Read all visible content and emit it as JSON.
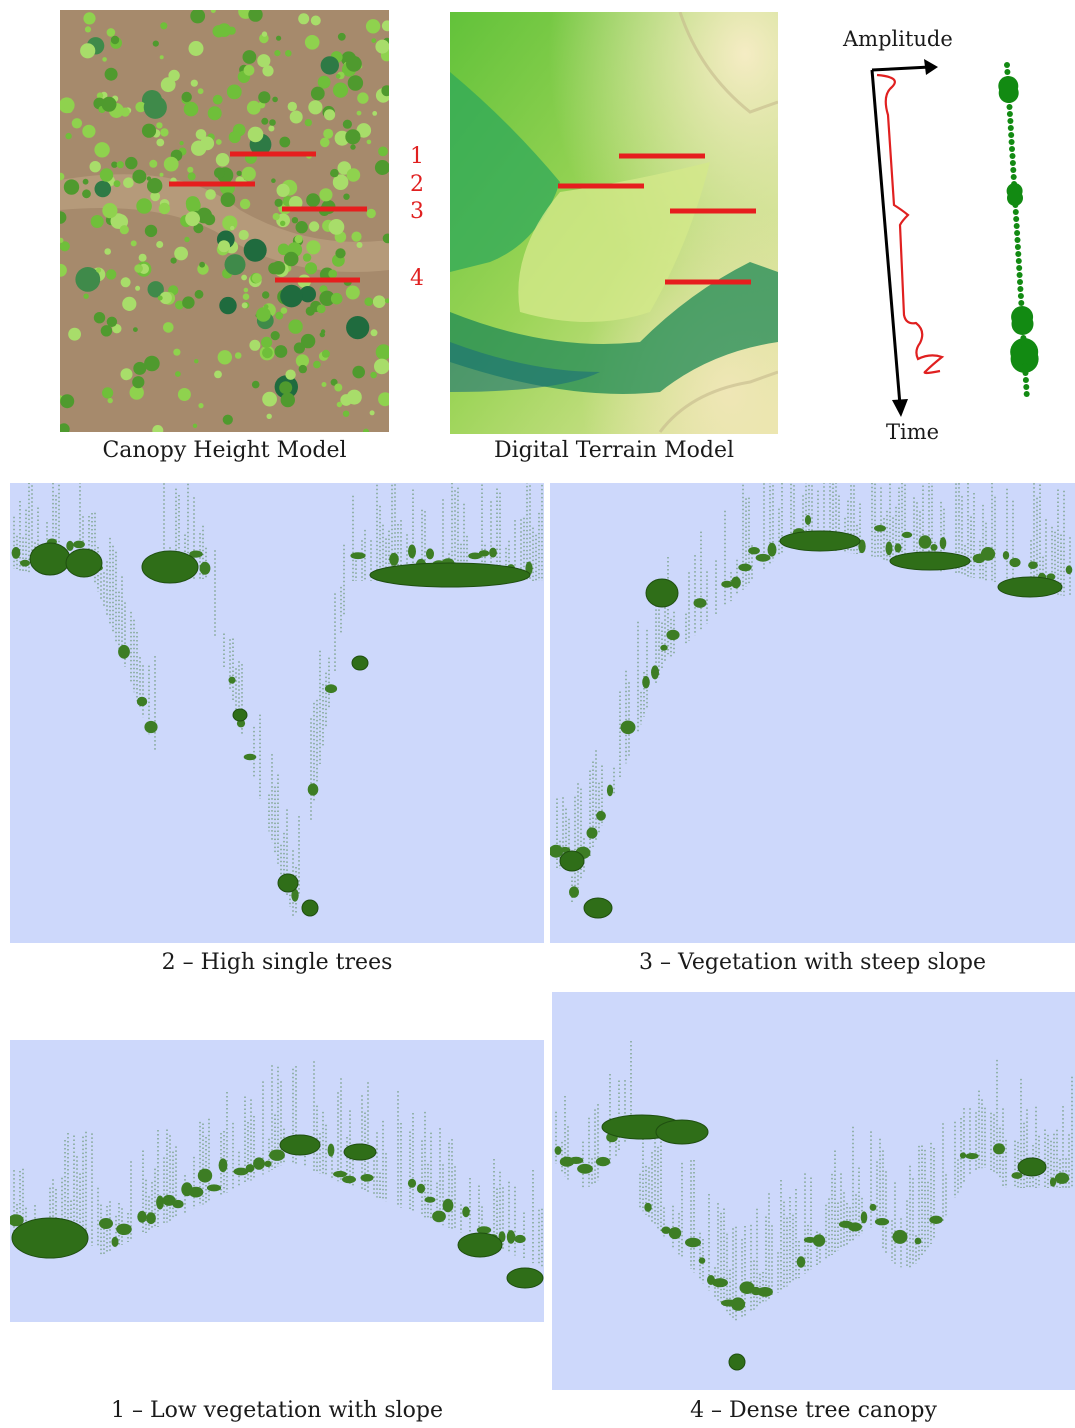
{
  "top": {
    "chm_caption": "Canopy Height Model",
    "dtm_caption": "Digital Terrain Model",
    "profile_numbers": [
      "1",
      "2",
      "3",
      "4"
    ],
    "waveform": {
      "amplitude_label": "Amplitude",
      "time_label": "Time"
    }
  },
  "panels": [
    {
      "caption": "2 – High single trees"
    },
    {
      "caption": "3 – Vegetation with steep slope"
    },
    {
      "caption": "1 – Low vegetation with slope"
    },
    {
      "caption": "4 – Dense tree canopy"
    }
  ],
  "colors": {
    "profile_line": "#e61e1e",
    "panel_background": "#cdd8fb",
    "vegetation_dark": "#2d6e1e",
    "waveform_line": "#e02020",
    "waveform_dots": "#128a12"
  }
}
